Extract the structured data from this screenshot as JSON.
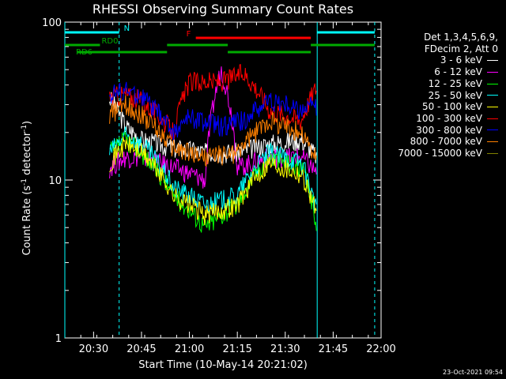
{
  "chart_data": {
    "type": "line",
    "title": "RHESSI Observing Summary Count Rates",
    "xlabel": "Start Time (10-May-14 20:21:02)",
    "ylabel_main": "Count Rate (s",
    "ylabel_exp": "-1",
    "ylabel_mid": " detector",
    "ylabel_exp2": "-1",
    "ylabel_end": ")",
    "yscale": "log",
    "ylim": [
      1,
      100
    ],
    "xlim_minutes": [
      "20:21",
      "22:00"
    ],
    "x_ticks": [
      "20:30",
      "20:45",
      "21:00",
      "21:15",
      "21:30",
      "21:45",
      "22:00"
    ],
    "y_ticks": [
      "1",
      "10",
      "100"
    ],
    "legend_header": [
      "Det 1,3,4,5,6,9,",
      "FDecim 2, Att 0"
    ],
    "series": [
      {
        "name": "3 - 6 keV",
        "color": "#ffffff",
        "points": [
          [
            "20:35",
            33
          ],
          [
            "20:40",
            22
          ],
          [
            "20:45",
            18
          ],
          [
            "20:55",
            16
          ],
          [
            "21:05",
            15
          ],
          [
            "21:15",
            15
          ],
          [
            "21:25",
            17
          ],
          [
            "21:35",
            18
          ],
          [
            "21:40",
            14
          ]
        ]
      },
      {
        "name": "6 - 12 keV",
        "color": "#ff00ff",
        "points": [
          [
            "20:35",
            12
          ],
          [
            "20:40",
            14
          ],
          [
            "20:45",
            14
          ],
          [
            "20:55",
            12
          ],
          [
            "21:05",
            10
          ],
          [
            "21:10",
            50
          ],
          [
            "21:15",
            12
          ],
          [
            "21:25",
            14
          ],
          [
            "21:35",
            14
          ],
          [
            "21:40",
            11
          ]
        ]
      },
      {
        "name": "12 - 25 keV",
        "color": "#00ff00",
        "points": [
          [
            "20:35",
            15
          ],
          [
            "20:40",
            18
          ],
          [
            "20:45",
            15
          ],
          [
            "20:55",
            8
          ],
          [
            "21:05",
            5
          ],
          [
            "21:15",
            7
          ],
          [
            "21:25",
            14
          ],
          [
            "21:35",
            12
          ],
          [
            "21:40",
            5
          ]
        ]
      },
      {
        "name": "25 - 50 keV",
        "color": "#00ffff",
        "points": [
          [
            "20:35",
            15
          ],
          [
            "20:40",
            19
          ],
          [
            "20:45",
            17
          ],
          [
            "20:55",
            9
          ],
          [
            "21:05",
            7
          ],
          [
            "21:15",
            8
          ],
          [
            "21:25",
            15
          ],
          [
            "21:35",
            13
          ],
          [
            "21:40",
            6
          ]
        ]
      },
      {
        "name": "50 - 100 keV",
        "color": "#ffff00",
        "points": [
          [
            "20:35",
            13
          ],
          [
            "20:40",
            17
          ],
          [
            "20:45",
            15
          ],
          [
            "20:55",
            8
          ],
          [
            "21:05",
            6
          ],
          [
            "21:15",
            7
          ],
          [
            "21:25",
            13
          ],
          [
            "21:35",
            11
          ],
          [
            "21:40",
            6
          ]
        ]
      },
      {
        "name": "100 - 300 keV",
        "color": "#ff0000",
        "points": [
          [
            "20:35",
            34
          ],
          [
            "20:40",
            35
          ],
          [
            "20:45",
            32
          ],
          [
            "20:55",
            20
          ],
          [
            "21:00",
            42
          ],
          [
            "21:10",
            42
          ],
          [
            "21:17",
            48
          ],
          [
            "21:25",
            28
          ],
          [
            "21:35",
            24
          ],
          [
            "21:40",
            40
          ]
        ]
      },
      {
        "name": "300 - 800 keV",
        "color": "#0000ff",
        "points": [
          [
            "20:35",
            35
          ],
          [
            "20:40",
            37
          ],
          [
            "20:45",
            34
          ],
          [
            "20:55",
            20
          ],
          [
            "21:00",
            25
          ],
          [
            "21:10",
            22
          ],
          [
            "21:17",
            24
          ],
          [
            "21:25",
            32
          ],
          [
            "21:35",
            28
          ],
          [
            "21:40",
            30
          ]
        ]
      },
      {
        "name": "800 - 7000 keV",
        "color": "#ff8000",
        "points": [
          [
            "20:35",
            26
          ],
          [
            "20:40",
            30
          ],
          [
            "20:45",
            26
          ],
          [
            "20:55",
            16
          ],
          [
            "21:05",
            14
          ],
          [
            "21:15",
            15
          ],
          [
            "21:25",
            24
          ],
          [
            "21:35",
            20
          ],
          [
            "21:40",
            13
          ]
        ]
      },
      {
        "name": "7000 - 15000 keV",
        "color": "#808000",
        "points": []
      }
    ],
    "bars": [
      {
        "label": "N",
        "color": "#00ffff",
        "segments": [
          [
            "20:21",
            "20:38"
          ],
          [
            "21:40",
            "21:58"
          ]
        ]
      },
      {
        "label": "F",
        "color": "#ff0000",
        "segments": [
          [
            "21:02",
            "21:38"
          ]
        ]
      },
      {
        "label": "RD0",
        "color": "#00aa00",
        "segments": [
          [
            "20:21",
            "20:32"
          ],
          [
            "20:53",
            "21:12"
          ],
          [
            "21:38",
            "21:58"
          ]
        ]
      },
      {
        "label": "RD6",
        "color": "#00aa00",
        "segments": [
          [
            "20:25",
            "20:53"
          ],
          [
            "21:12",
            "21:38"
          ]
        ]
      }
    ],
    "vlines": [
      "20:21",
      "20:38",
      "21:40",
      "21:58"
    ]
  },
  "footer": {
    "timestamp": "23-Oct-2021 09:54"
  }
}
